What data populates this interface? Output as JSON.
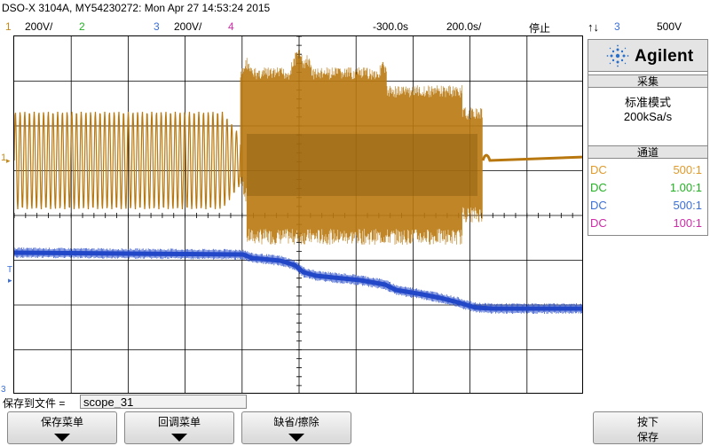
{
  "header": {
    "title": "DSO-X 3104A, MY54230272: Mon Apr 27 14:53:24 2015",
    "ch1_num": "1",
    "ch1_scale": "200V/",
    "ch2_num": "2",
    "ch3_num": "3",
    "ch3_scale": "200V/",
    "ch4_num": "4",
    "time_delay": "-300.0s",
    "time_scale": "200.0s/",
    "run_state": "停止",
    "trigger_source": "3",
    "trigger_level": "500V"
  },
  "colors": {
    "ch1": "#c58a1c",
    "ch2": "#22b022",
    "ch3": "#3a6fd8",
    "ch4": "#d02aa8",
    "trace_ch1": "#b8780f",
    "trace_ch3": "#2348c8"
  },
  "panel": {
    "brand": "Agilent",
    "acq_header": "采集",
    "acq_mode": "标准模式",
    "acq_rate": "200kSa/s",
    "channel_header": "通道",
    "channels": [
      {
        "coupling": "DC",
        "probe": "500:1"
      },
      {
        "coupling": "DC",
        "probe": "1.00:1"
      },
      {
        "coupling": "DC",
        "probe": "500:1"
      },
      {
        "coupling": "DC",
        "probe": "100:1"
      }
    ]
  },
  "markers": {
    "ch1_ground": "1",
    "trigger": "T",
    "ch3_ground": "3"
  },
  "bottom": {
    "file_label": "保存到文件 =",
    "file_value": "scope_31",
    "softkeys": [
      {
        "label": "保存菜单"
      },
      {
        "label": "回调菜单"
      },
      {
        "label": "缺省/擦除"
      },
      {
        "label": "按下",
        "sub": "保存"
      }
    ]
  }
}
